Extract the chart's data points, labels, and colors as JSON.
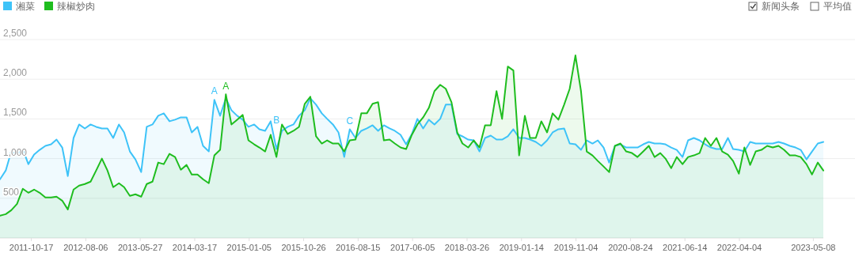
{
  "chart_data": {
    "type": "area",
    "x": [
      "2011-05",
      "2011-06",
      "2011-07",
      "2011-08",
      "2011-09",
      "2011-10",
      "2011-11",
      "2011-12",
      "2012-01",
      "2012-02",
      "2012-03",
      "2012-04",
      "2012-05",
      "2012-06",
      "2012-07",
      "2012-08",
      "2012-09",
      "2012-10",
      "2012-11",
      "2012-12",
      "2013-01",
      "2013-02",
      "2013-03",
      "2013-04",
      "2013-05",
      "2013-06",
      "2013-07",
      "2013-08",
      "2013-09",
      "2013-10",
      "2013-11",
      "2013-12",
      "2014-01",
      "2014-02",
      "2014-03",
      "2014-04",
      "2014-05",
      "2014-06",
      "2014-07",
      "2014-08",
      "2014-09",
      "2014-10",
      "2014-11",
      "2014-12",
      "2015-01",
      "2015-02",
      "2015-03",
      "2015-04",
      "2015-05",
      "2015-06",
      "2015-07",
      "2015-08",
      "2015-09",
      "2015-10",
      "2015-11",
      "2015-12",
      "2016-01",
      "2016-02",
      "2016-03",
      "2016-04",
      "2016-05",
      "2016-06",
      "2016-07",
      "2016-08",
      "2016-09",
      "2016-10",
      "2016-11",
      "2016-12",
      "2017-01",
      "2017-02",
      "2017-03",
      "2017-04",
      "2017-05",
      "2017-06",
      "2017-07",
      "2017-08",
      "2017-09",
      "2017-10",
      "2017-11",
      "2017-12",
      "2018-01",
      "2018-02",
      "2018-03",
      "2018-04",
      "2018-05",
      "2018-06",
      "2018-07",
      "2018-08",
      "2018-09",
      "2018-10",
      "2018-11",
      "2018-12",
      "2019-01",
      "2019-02",
      "2019-03",
      "2019-04",
      "2019-05",
      "2019-06",
      "2019-07",
      "2019-08",
      "2019-09",
      "2019-10",
      "2019-11",
      "2019-12",
      "2020-01",
      "2020-02",
      "2020-03",
      "2020-04",
      "2020-05",
      "2020-06",
      "2020-07",
      "2020-08",
      "2020-09",
      "2020-10",
      "2020-11",
      "2020-12",
      "2021-01",
      "2021-02",
      "2021-03",
      "2021-04",
      "2021-05",
      "2021-06",
      "2021-07",
      "2021-08",
      "2021-09",
      "2021-10",
      "2021-11",
      "2021-12",
      "2022-01",
      "2022-02",
      "2022-03",
      "2022-04",
      "2022-05",
      "2022-06",
      "2022-07",
      "2022-08",
      "2022-09",
      "2022-10",
      "2022-11",
      "2022-12",
      "2023-01",
      "2023-02",
      "2023-03",
      "2023-04",
      "2023-05",
      "2023-06",
      "2023-07"
    ],
    "series": [
      {
        "name": "湘菜",
        "color": "#3ec3f8",
        "values": [
          740,
          850,
          1090,
          1050,
          1120,
          930,
          1050,
          1110,
          1160,
          1180,
          1240,
          1140,
          780,
          1260,
          1430,
          1380,
          1430,
          1400,
          1380,
          1380,
          1260,
          1430,
          1330,
          1090,
          990,
          830,
          1400,
          1430,
          1540,
          1570,
          1470,
          1490,
          1520,
          1520,
          1330,
          1400,
          1160,
          1090,
          1740,
          1540,
          1760,
          1610,
          1540,
          1490,
          1400,
          1430,
          1370,
          1350,
          1470,
          1120,
          1350,
          1400,
          1430,
          1540,
          1610,
          1760,
          1680,
          1570,
          1500,
          1430,
          1330,
          1020,
          1370,
          1260,
          1350,
          1380,
          1420,
          1350,
          1420,
          1380,
          1350,
          1300,
          1180,
          1310,
          1500,
          1380,
          1490,
          1430,
          1500,
          1680,
          1680,
          1310,
          1280,
          1240,
          1230,
          1090,
          1260,
          1290,
          1240,
          1240,
          1280,
          1370,
          1260,
          1260,
          1240,
          1210,
          1160,
          1230,
          1330,
          1370,
          1380,
          1190,
          1180,
          1110,
          1230,
          1190,
          1230,
          1140,
          950,
          1160,
          1180,
          1140,
          1140,
          1140,
          1180,
          1210,
          1190,
          1190,
          1180,
          1140,
          1110,
          1020,
          1230,
          1260,
          1230,
          1180,
          1140,
          1120,
          1120,
          1260,
          1120,
          1110,
          1090,
          1210,
          1190,
          1190,
          1190,
          1190,
          1210,
          1190,
          1160,
          1140,
          1110,
          990,
          1090,
          1190,
          1210
        ]
      },
      {
        "name": "辣椒炒肉",
        "color": "#1fbd1f",
        "values": [
          280,
          300,
          350,
          430,
          620,
          570,
          610,
          570,
          510,
          510,
          520,
          470,
          360,
          610,
          660,
          680,
          710,
          850,
          1000,
          850,
          640,
          690,
          640,
          530,
          550,
          520,
          680,
          710,
          950,
          930,
          1060,
          1020,
          860,
          920,
          800,
          800,
          740,
          690,
          1040,
          1110,
          1810,
          1430,
          1490,
          1550,
          1230,
          1180,
          1140,
          1090,
          1300,
          1020,
          1430,
          1310,
          1350,
          1400,
          1690,
          1780,
          1280,
          1190,
          1230,
          1190,
          1190,
          1090,
          1230,
          1240,
          1570,
          1570,
          1690,
          1710,
          1230,
          1240,
          1190,
          1140,
          1120,
          1300,
          1430,
          1520,
          1640,
          1850,
          1930,
          1880,
          1710,
          1330,
          1190,
          1140,
          1230,
          1140,
          1420,
          1420,
          1850,
          1500,
          2160,
          2110,
          1040,
          1540,
          1260,
          1260,
          1470,
          1330,
          1570,
          1490,
          1680,
          1880,
          2300,
          1850,
          1090,
          1040,
          970,
          900,
          830,
          1160,
          1190,
          1090,
          1070,
          1020,
          1090,
          1160,
          1020,
          1070,
          1000,
          880,
          1020,
          930,
          1020,
          1040,
          1070,
          1260,
          1160,
          1260,
          1090,
          1050,
          970,
          810,
          1140,
          920,
          1090,
          1110,
          1160,
          1140,
          1160,
          1110,
          1040,
          1040,
          1020,
          930,
          800,
          950,
          850
        ]
      }
    ],
    "xlim": [
      "2011-05-01",
      "2023-07-01"
    ],
    "xticks": [
      "2011-10-17",
      "2012-08-06",
      "2013-05-27",
      "2014-03-17",
      "2015-01-05",
      "2015-10-26",
      "2016-08-15",
      "2017-06-05",
      "2018-03-26",
      "2019-01-14",
      "2019-11-04",
      "2020-08-24",
      "2021-06-14",
      "2022-04-04",
      "2023-05-08"
    ],
    "ylim": [
      0,
      2500
    ],
    "yticks": [
      500,
      {
        "value": 1000,
        "label": "1,000"
      },
      {
        "value": 1500,
        "label": "1,500"
      },
      {
        "value": 2000,
        "label": "2,000"
      },
      {
        "value": 2500,
        "label": "2,500"
      }
    ],
    "grid": "y",
    "legend": "top left",
    "annotations": [
      {
        "text": "A",
        "x": "2014-07",
        "y": 1750
      },
      {
        "text": "A",
        "x": "2014-09",
        "y": 1810
      },
      {
        "text": "B",
        "x": "2015-06",
        "y": 1380
      },
      {
        "text": "C",
        "x": "2016-07",
        "y": 1370
      },
      "新闻头条",
      "平均值"
    ]
  }
}
